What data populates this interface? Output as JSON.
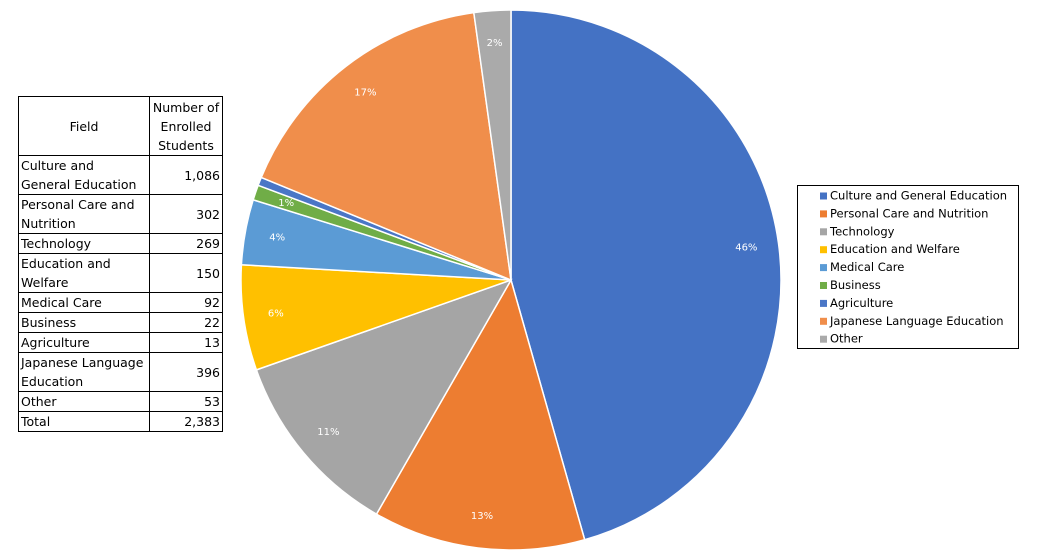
{
  "table": {
    "header": [
      "Field",
      "Number of Enrolled Students"
    ],
    "rows": [
      [
        "Culture and General Education",
        "1,086"
      ],
      [
        "Personal Care and Nutrition",
        "302"
      ],
      [
        "Technology",
        "269"
      ],
      [
        "Education and Welfare",
        "150"
      ],
      [
        "Medical Care",
        "92"
      ],
      [
        "Business",
        "22"
      ],
      [
        "Agriculture",
        "13"
      ],
      [
        "Japanese Language Education",
        "396"
      ],
      [
        "Other",
        "53"
      ],
      [
        "Total",
        "2,383"
      ]
    ]
  },
  "chart_data": {
    "type": "pie",
    "categories": [
      "Culture and General Education",
      "Personal Care and Nutrition",
      "Technology",
      "Education and Welfare",
      "Medical Care",
      "Business",
      "Agriculture",
      "Japanese Language Education",
      "Other"
    ],
    "values": [
      45.6,
      12.7,
      11.3,
      6.3,
      3.9,
      0.9,
      0.5,
      16.6,
      2.2
    ],
    "value_labels": [
      "46%",
      "13%",
      "11%",
      "6%",
      "4%",
      "1%",
      null,
      "17%",
      "2%"
    ],
    "colors": [
      "#4472c4",
      "#ed7d31",
      "#a5a5a5",
      "#ffc000",
      "#5b9bd5",
      "#70ad47",
      "#4a76c6",
      "#f08e4b",
      "#aaaaaa"
    ],
    "legend": "right"
  }
}
